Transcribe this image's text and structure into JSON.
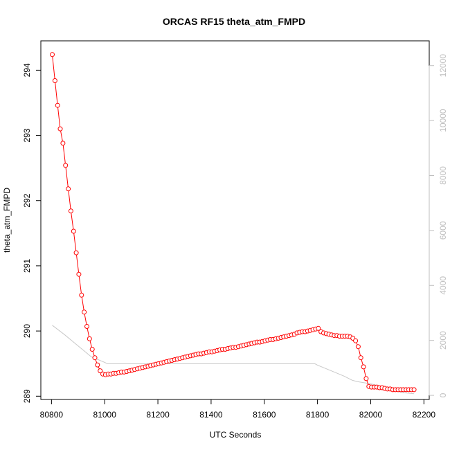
{
  "chart_data": {
    "type": "line",
    "title": "ORCAS RF15 theta_atm_FMPD",
    "xlabel": "UTC Seconds",
    "ylabel": "theta_atm_FMPD",
    "xlim": [
      80760,
      82220
    ],
    "ylim": [
      288.95,
      294.45
    ],
    "x_ticks": [
      80800,
      81000,
      81200,
      81400,
      81600,
      81800,
      82000,
      82200
    ],
    "y_ticks": [
      289,
      290,
      291,
      292,
      293,
      294
    ],
    "y2lim": [
      -150,
      12900
    ],
    "y2_ticks": [
      0,
      2000,
      4000,
      6000,
      8000,
      10000,
      12000
    ],
    "grid": false,
    "series": [
      {
        "color": "#ff0000",
        "style": "line+circles",
        "x": [
          80803,
          80813,
          80823,
          80833,
          80843,
          80853,
          80863,
          80873,
          80883,
          80893,
          80903,
          80913,
          80923,
          80933,
          80943,
          80953,
          80963,
          80973,
          80983,
          80993,
          81003,
          81013,
          81023,
          81033,
          81043,
          81053,
          81063,
          81073,
          81083,
          81093,
          81103,
          81113,
          81123,
          81133,
          81143,
          81153,
          81163,
          81173,
          81183,
          81193,
          81203,
          81213,
          81223,
          81233,
          81243,
          81253,
          81263,
          81273,
          81283,
          81293,
          81303,
          81313,
          81323,
          81333,
          81343,
          81353,
          81363,
          81373,
          81383,
          81393,
          81403,
          81413,
          81423,
          81433,
          81443,
          81453,
          81463,
          81473,
          81483,
          81493,
          81503,
          81513,
          81523,
          81533,
          81543,
          81553,
          81563,
          81573,
          81583,
          81593,
          81603,
          81613,
          81623,
          81633,
          81643,
          81653,
          81663,
          81673,
          81683,
          81693,
          81703,
          81713,
          81723,
          81733,
          81743,
          81753,
          81763,
          81773,
          81783,
          81793,
          81803,
          81813,
          81823,
          81833,
          81843,
          81853,
          81863,
          81873,
          81883,
          81893,
          81903,
          81913,
          81923,
          81933,
          81943,
          81953,
          81963,
          81973,
          81983,
          81993,
          82003,
          82013,
          82023,
          82033,
          82043,
          82053,
          82063,
          82073,
          82083,
          82093,
          82103,
          82113,
          82123,
          82133,
          82143,
          82153,
          82163
        ],
        "y": [
          294.24,
          293.84,
          293.46,
          293.1,
          292.88,
          292.54,
          292.18,
          291.84,
          291.53,
          291.2,
          290.87,
          290.55,
          290.29,
          290.07,
          289.88,
          289.72,
          289.59,
          289.48,
          289.39,
          289.34,
          289.33,
          289.34,
          289.34,
          289.35,
          289.35,
          289.36,
          289.37,
          289.37,
          289.38,
          289.39,
          289.4,
          289.41,
          289.42,
          289.43,
          289.44,
          289.45,
          289.46,
          289.47,
          289.48,
          289.49,
          289.5,
          289.51,
          289.52,
          289.53,
          289.54,
          289.55,
          289.56,
          289.57,
          289.58,
          289.59,
          289.6,
          289.61,
          289.62,
          289.63,
          289.64,
          289.65,
          289.65,
          289.66,
          289.67,
          289.68,
          289.68,
          289.69,
          289.7,
          289.71,
          289.72,
          289.72,
          289.73,
          289.74,
          289.75,
          289.75,
          289.76,
          289.77,
          289.78,
          289.79,
          289.8,
          289.81,
          289.82,
          289.83,
          289.83,
          289.84,
          289.85,
          289.86,
          289.87,
          289.87,
          289.88,
          289.89,
          289.9,
          289.91,
          289.92,
          289.93,
          289.94,
          289.95,
          289.97,
          289.98,
          289.99,
          289.99,
          290.0,
          290.01,
          290.02,
          290.03,
          290.04,
          289.99,
          289.97,
          289.96,
          289.95,
          289.94,
          289.93,
          289.93,
          289.92,
          289.92,
          289.92,
          289.92,
          289.91,
          289.89,
          289.85,
          289.76,
          289.59,
          289.45,
          289.27,
          289.15,
          289.14,
          289.14,
          289.14,
          289.13,
          289.13,
          289.12,
          289.11,
          289.11,
          289.1,
          289.1,
          289.1,
          289.1,
          289.1,
          289.1,
          289.1,
          289.1,
          289.1
        ]
      },
      {
        "color": "#c8c8c8",
        "axis": "right",
        "style": "line",
        "x": [
          80803,
          80850,
          80900,
          80950,
          81000,
          81010,
          81030,
          81100,
          81200,
          81300,
          81400,
          81500,
          81600,
          81700,
          81750,
          81790,
          81800,
          81850,
          81900,
          81930,
          81950,
          82000,
          82050,
          82080,
          82100,
          82120,
          82140,
          82163
        ],
        "y": [
          2550,
          2200,
          1800,
          1400,
          1200,
          1150,
          1150,
          1150,
          1150,
          1150,
          1150,
          1150,
          1150,
          1150,
          1150,
          1150,
          1100,
          900,
          700,
          550,
          500,
          420,
          300,
          220,
          150,
          100,
          80,
          60
        ]
      }
    ]
  }
}
